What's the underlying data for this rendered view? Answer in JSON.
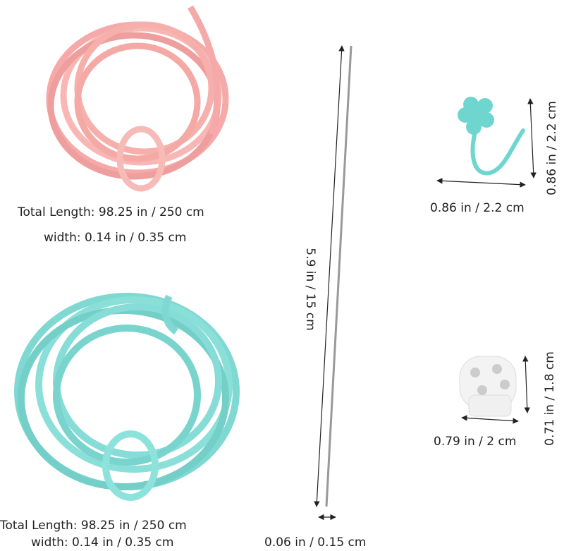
{
  "pink_cord": {
    "length": "Total Length: 98.25 in / 250 cm",
    "width": "width: 0.14 in / 0.35 cm"
  },
  "blue_cord": {
    "length": "Total Length: 98.25 in / 250 cm",
    "width": "width: 0.14 in / 0.35 cm"
  },
  "needle": {
    "length": "5.9 in / 15 cm",
    "width": "0.06 in / 0.15 cm"
  },
  "stitch_marker": {
    "width": "0.86 in / 2.2 cm",
    "height": "0.86 in / 2.2 cm"
  },
  "cord_lock": {
    "width": "0.79 in / 2 cm",
    "height": "0.71 in / 1.8 cm"
  }
}
